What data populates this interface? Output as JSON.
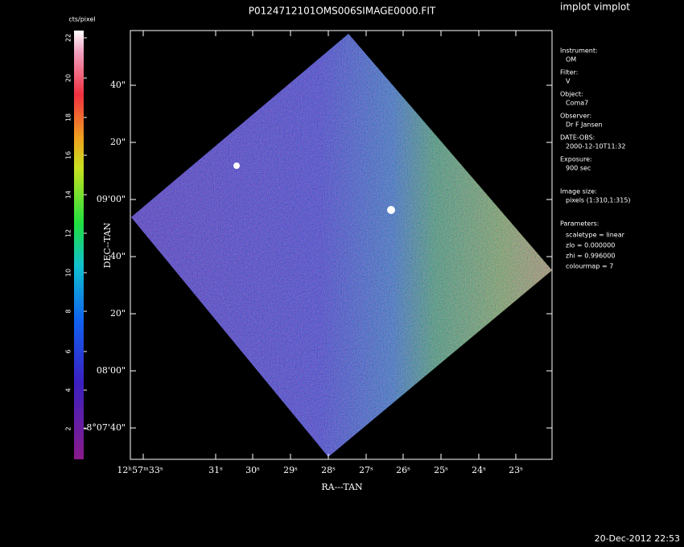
{
  "header": {
    "program": "implot vimplot",
    "title": "P0124712101OMS006SIMAGE0000.FIT",
    "timestamp": "20-Dec-2012 22:53"
  },
  "colorbar": {
    "label": "cts/pixel",
    "ticks": [
      "22",
      "20",
      "18",
      "16",
      "14",
      "12",
      "10",
      "8",
      "6",
      "4",
      "2"
    ]
  },
  "axes": {
    "x_label": "RA---TAN",
    "y_label": "DEC--TAN",
    "x_ticks": [
      "12ʰ57ᵐ33ˢ",
      "31ˢ",
      "30ˢ",
      "29ˢ",
      "28ˢ",
      "27ˢ",
      "26ˢ",
      "25ˢ",
      "24ˢ",
      "23ˢ"
    ],
    "y_ticks": [
      "40\"",
      "20\"",
      "09'00\"",
      "40\"",
      "20\"",
      "08'00\"",
      "-8°07'40\""
    ]
  },
  "info": [
    {
      "label": "Instrument:",
      "value": "OM"
    },
    {
      "label": "Filter:",
      "value": "V"
    },
    {
      "label": "Object:",
      "value": "Coma7"
    },
    {
      "label": "Observer:",
      "value": "Dr F Jansen"
    },
    {
      "label": "DATE-OBS:",
      "value": "2000-12-10T11:32"
    },
    {
      "label": "Exposure:",
      "value": "900 sec"
    },
    {
      "label": "Image size:",
      "value": "pixels (1:310,1:315)"
    }
  ],
  "parameters": {
    "label": "Parameters:",
    "lines": [
      "scaletype = linear",
      "zlo = 0.000000",
      "zhi = 0.996000",
      "colourmap =   7"
    ]
  }
}
